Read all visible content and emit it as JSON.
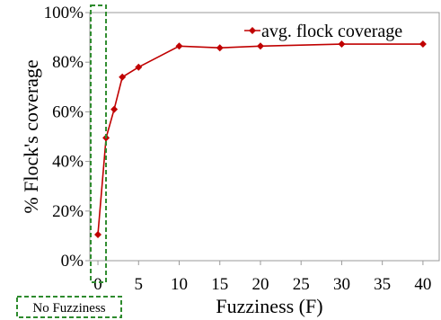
{
  "chart_data": {
    "type": "line",
    "xlabel": "Fuzziness (F)",
    "ylabel": "% Flock's coverage",
    "xlim": [
      -1,
      42
    ],
    "ylim": [
      0,
      100
    ],
    "xticks": [
      0,
      5,
      10,
      15,
      20,
      25,
      30,
      35,
      40
    ],
    "xtick_labels": [
      "0",
      "5",
      "10",
      "15",
      "20",
      "25",
      "30",
      "35",
      "40"
    ],
    "yticks": [
      0,
      20,
      40,
      60,
      80,
      100
    ],
    "ytick_labels": [
      "0%",
      "20%",
      "40%",
      "60%",
      "80%",
      "100%"
    ],
    "series": [
      {
        "name": "avg. flock coverage",
        "color": "#c00000",
        "marker": "diamond",
        "x": [
          0,
          1,
          2,
          3,
          5,
          10,
          15,
          20,
          30,
          40
        ],
        "y": [
          10.5,
          49.5,
          61,
          74,
          78,
          86.5,
          85.8,
          86.5,
          87.3,
          87.3
        ]
      }
    ],
    "legend": "top-right",
    "grid": false,
    "annotations": [
      {
        "text": "No Fuzziness",
        "color": "#2e8b2e",
        "style": "dashed-box",
        "target_x": 0
      }
    ]
  }
}
